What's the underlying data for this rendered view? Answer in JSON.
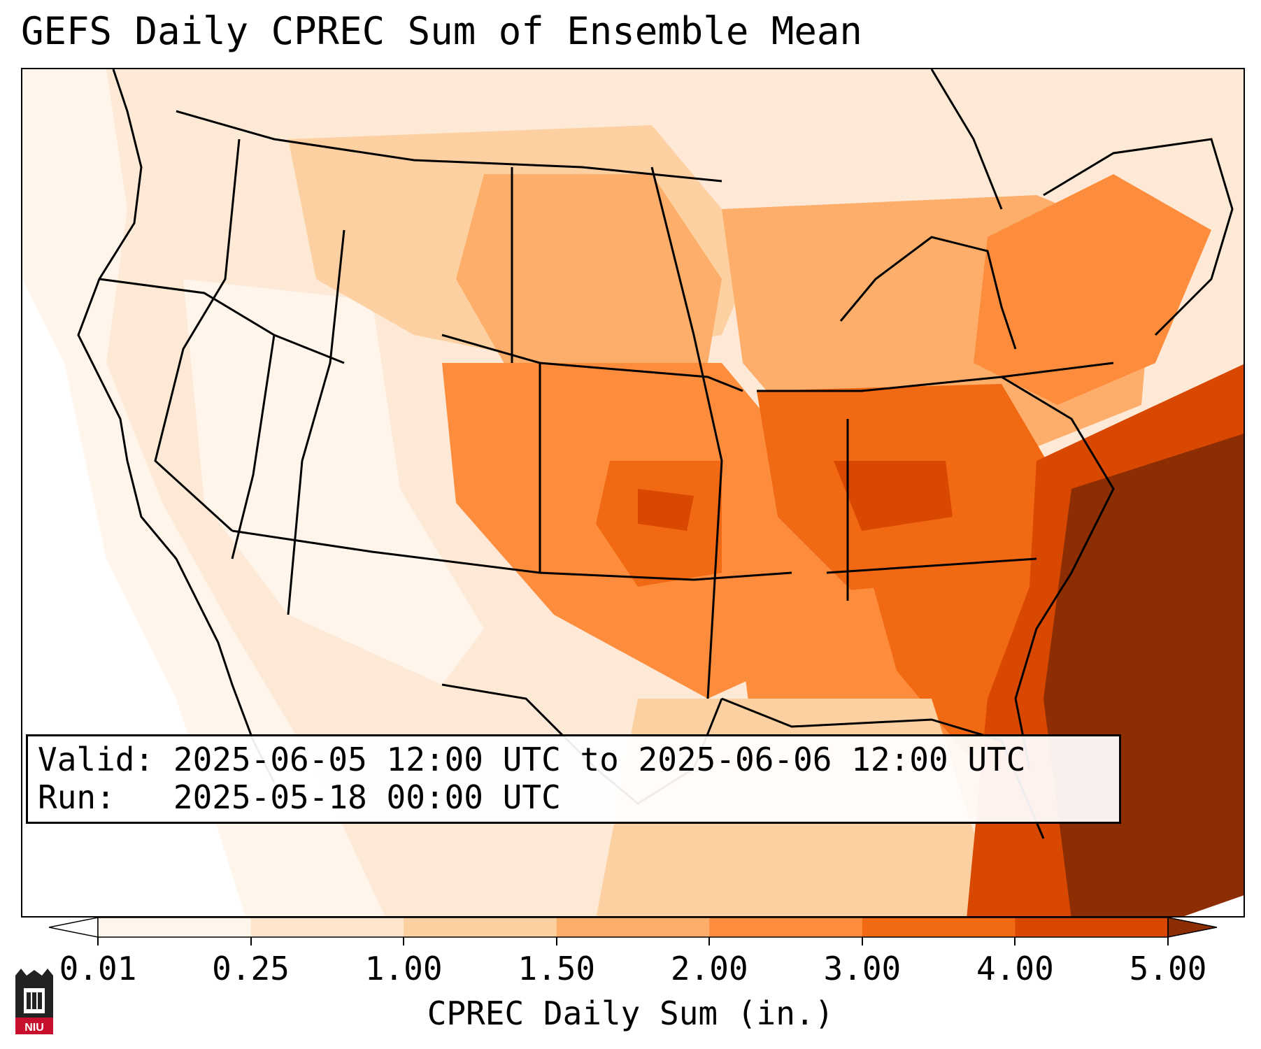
{
  "title": "GEFS Daily CPREC Sum of Ensemble Mean",
  "info": {
    "valid_label": "Valid:",
    "valid_value": "2025-06-05 12:00 UTC to 2025-06-06 12:00 UTC",
    "run_label": "Run:",
    "run_value": "2025-05-18 00:00 UTC"
  },
  "colorbar": {
    "label": "CPREC Daily Sum (in.)",
    "ticks": [
      "0.01",
      "0.25",
      "1.00",
      "1.50",
      "2.00",
      "3.00",
      "4.00",
      "5.00"
    ],
    "colors": [
      "#fff5eb",
      "#fee6ce",
      "#fdd0a2",
      "#fdae6b",
      "#fd8d3c",
      "#f16913",
      "#d94801",
      "#8c2d04"
    ]
  },
  "logo": {
    "text": "NIU",
    "color": "#c8102e"
  }
}
